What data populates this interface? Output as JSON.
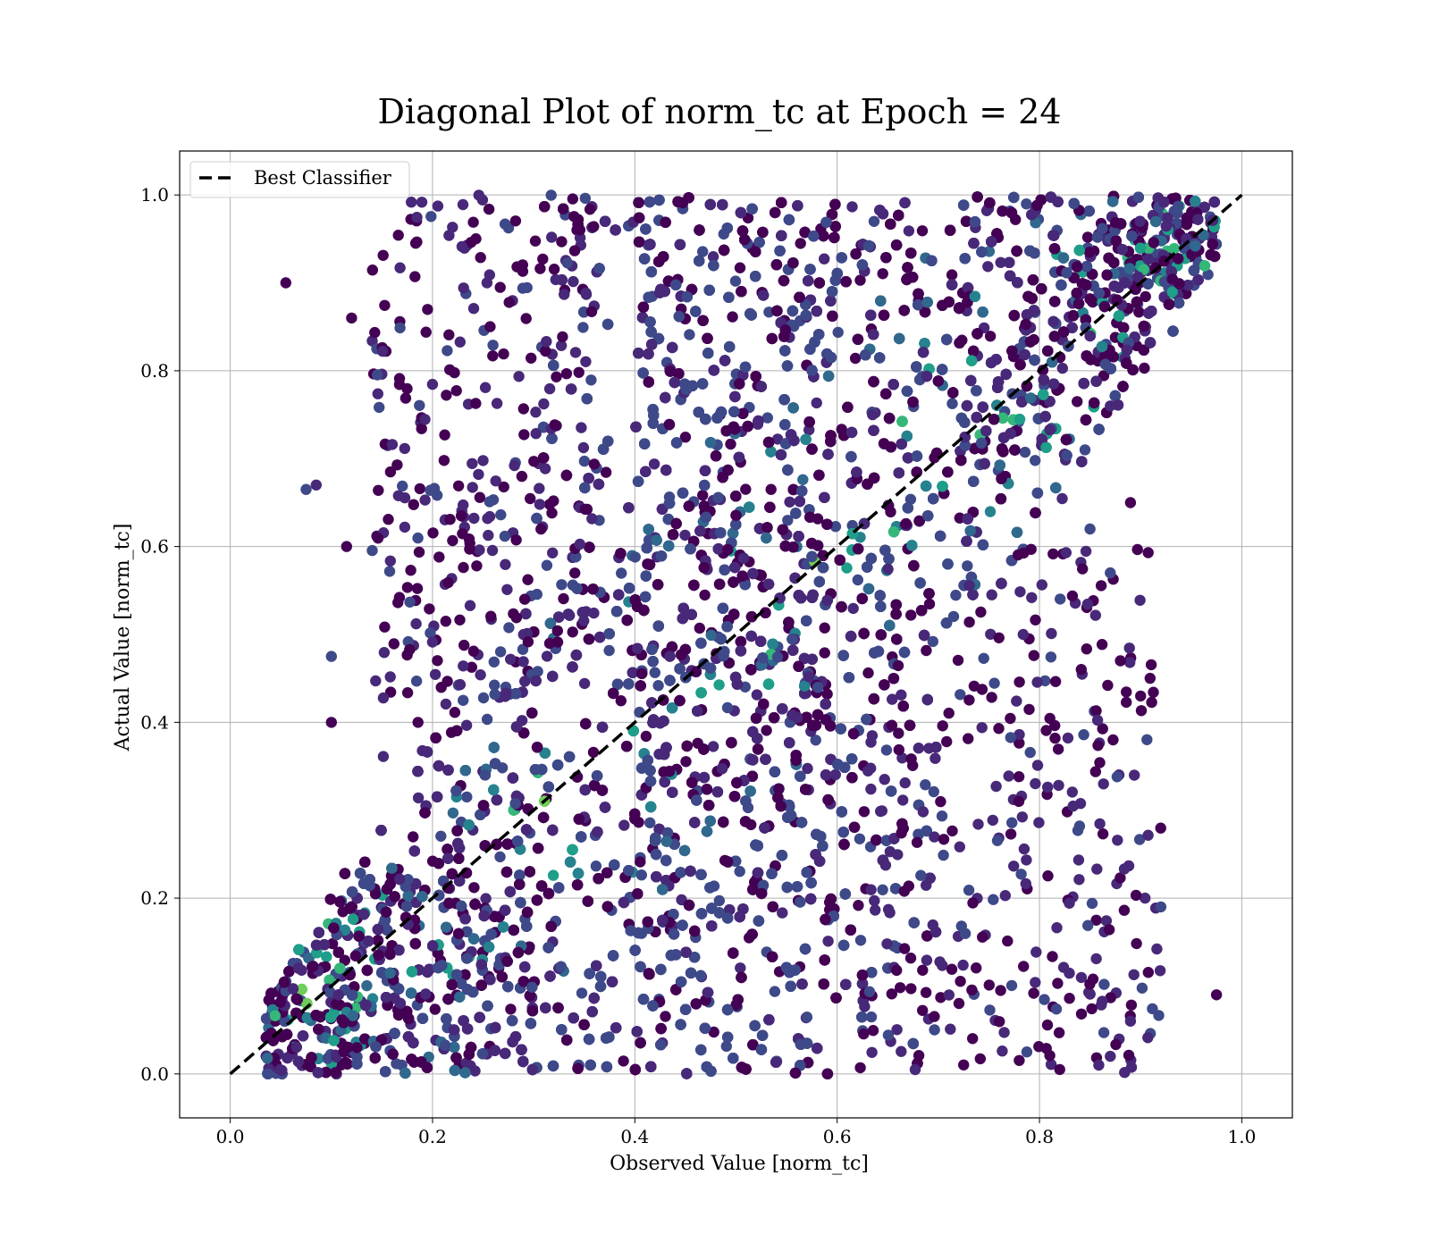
{
  "chart_data": {
    "type": "scatter",
    "title": "Diagonal Plot of norm_tc at Epoch = 24",
    "xlabel": "Observed Value [norm_tc]",
    "ylabel": "Actual Value [norm_tc]",
    "xlim": [
      -0.05,
      1.05
    ],
    "ylim": [
      -0.05,
      1.05
    ],
    "xticks": [
      "0.0",
      "0.2",
      "0.4",
      "0.6",
      "0.8",
      "1.0"
    ],
    "yticks": [
      "0.0",
      "0.2",
      "0.4",
      "0.6",
      "0.8",
      "1.0"
    ],
    "grid": true,
    "legend": {
      "position": "upper left",
      "entries": [
        {
          "label": "Best Classifier",
          "style": "dashed",
          "color": "#000000"
        }
      ]
    },
    "reference_line": {
      "x": [
        0,
        1
      ],
      "y": [
        0,
        1
      ],
      "style": "dashed",
      "color": "#000000"
    },
    "colormap": "viridis",
    "colormap_stops": [
      "#440154",
      "#482878",
      "#3e4989",
      "#31688e",
      "#26828e",
      "#1f9e89",
      "#35b779",
      "#6ece58",
      "#b5de2b"
    ],
    "series": [
      {
        "points_note_outliers": true,
        "sample_points": [
          [
            0.055,
            0.9
          ],
          [
            0.12,
            0.86
          ],
          [
            0.075,
            0.665
          ],
          [
            0.085,
            0.67
          ],
          [
            0.115,
            0.6
          ],
          [
            0.1,
            0.475
          ],
          [
            0.1,
            0.4
          ],
          [
            0.975,
            0.09
          ],
          [
            0.92,
            0.19
          ],
          [
            0.89,
            0.06
          ],
          [
            0.87,
            0.02
          ],
          [
            0.82,
            0.005
          ],
          [
            0.9,
            0.43
          ],
          [
            0.88,
            0.47
          ],
          [
            0.87,
            0.57
          ],
          [
            0.85,
            0.62
          ],
          [
            0.89,
            0.65
          ],
          [
            0.635,
            0.75
          ],
          [
            0.845,
            0.71
          ],
          [
            0.87,
            0.76
          ]
        ],
        "density_bands": [
          {
            "x_range": [
              0.035,
              0.6
            ],
            "y_rel_diag_below": 0.55,
            "y_rel_diag_above": 0.12,
            "intensity": "high"
          },
          {
            "x_range": [
              0.4,
              0.975
            ],
            "y_rel_diag_below": 0.12,
            "y_rel_diag_above": 0.55,
            "intensity": "high"
          }
        ]
      }
    ]
  }
}
